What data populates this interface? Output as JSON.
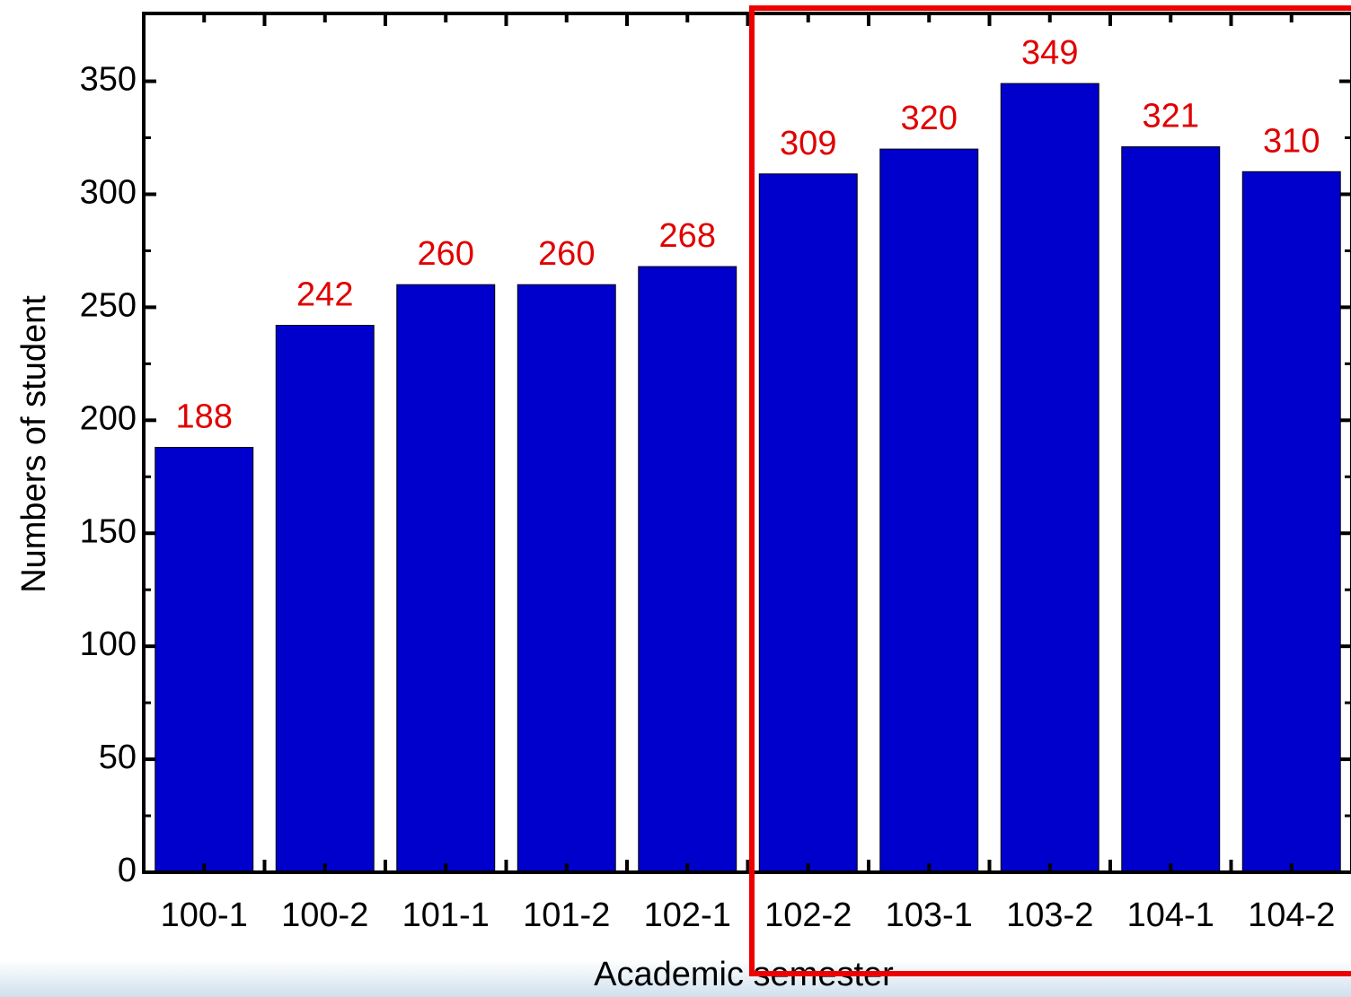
{
  "chart_data": {
    "type": "bar",
    "x_label": "Academic semester",
    "y_label": "Numbers of student",
    "categories": [
      "100-1",
      "100-2",
      "101-1",
      "101-2",
      "102-1",
      "102-2",
      "103-1",
      "103-2",
      "104-1",
      "104-2"
    ],
    "values": [
      188,
      242,
      260,
      260,
      268,
      309,
      320,
      349,
      321,
      310
    ],
    "color": "#0000cc",
    "value_label_color": "#e00000",
    "ylim": [
      0,
      380
    ],
    "yticks": [
      0,
      50,
      100,
      150,
      200,
      250,
      300,
      350
    ]
  }
}
